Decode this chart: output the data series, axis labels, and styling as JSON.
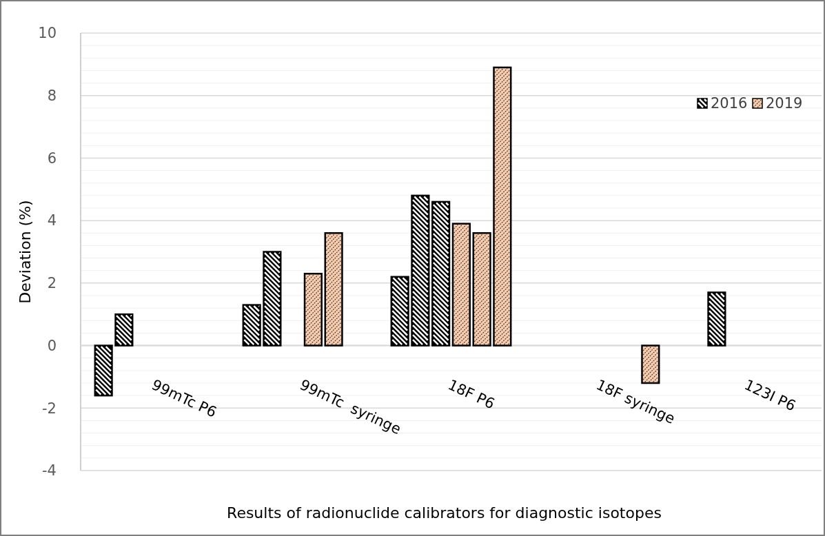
{
  "chart_data": {
    "type": "bar",
    "xlabel": "Results of radionuclide calibrators for diagnostic isotopes",
    "ylabel": "Deviation (%)",
    "categories": [
      "99mTc P6",
      "99mTc  syringe",
      "18F P6",
      "18F syringe",
      "123I P6"
    ],
    "series": [
      {
        "name": "2016",
        "color": "#000000",
        "values": [
          -1.6,
          1.3,
          2.2,
          null,
          null
        ]
      },
      {
        "color": "#000000",
        "values": [
          1.0,
          3.0,
          4.8,
          null,
          1.7
        ]
      },
      {
        "color": "#000000",
        "values": [
          null,
          null,
          4.6,
          null,
          null
        ]
      },
      {
        "name": "2019",
        "color": "#f8cbad",
        "values": [
          null,
          2.3,
          3.9,
          null,
          null
        ]
      },
      {
        "color": "#f8cbad",
        "values": [
          null,
          3.6,
          3.6,
          null,
          null
        ]
      },
      {
        "color": "#f8cbad",
        "values": [
          null,
          null,
          8.9,
          -1.2,
          null
        ]
      }
    ],
    "ylim": [
      -4,
      10
    ],
    "yticks": [
      -4,
      {
        "value": -3.6,
        "label": null
      },
      {
        "value": -3.2,
        "label": null
      },
      {
        "value": -2.8,
        "label": null
      },
      {
        "value": -2.4,
        "label": null
      },
      -2,
      {
        "value": -1.6,
        "label": null
      },
      {
        "value": -1.2,
        "label": null
      },
      {
        "value": -0.8,
        "label": null
      },
      {
        "value": -0.4,
        "label": null
      },
      0,
      {
        "value": 0.4,
        "label": null
      },
      {
        "value": 0.8,
        "label": null
      },
      {
        "value": 1.2,
        "label": null
      },
      {
        "value": 1.6,
        "label": null
      },
      2,
      {
        "value": 2.4,
        "label": null
      },
      {
        "value": 2.8,
        "label": null
      },
      {
        "value": 3.2,
        "label": null
      },
      {
        "value": 3.6,
        "label": null
      },
      4,
      {
        "value": 4.4,
        "label": null
      },
      {
        "value": 4.8,
        "label": null
      },
      {
        "value": 5.2,
        "label": null
      },
      {
        "value": 5.6,
        "label": null
      },
      6,
      {
        "value": 6.4,
        "label": null
      },
      {
        "value": 6.8,
        "label": null
      },
      {
        "value": 7.2,
        "label": null
      },
      {
        "value": 7.6,
        "label": null
      },
      8,
      {
        "value": 8.4,
        "label": null
      },
      {
        "value": 8.8,
        "label": null
      },
      {
        "value": 9.2,
        "label": null
      },
      {
        "value": 9.6,
        "label": null
      },
      10
    ],
    "grid": "y",
    "legend": "top right"
  }
}
